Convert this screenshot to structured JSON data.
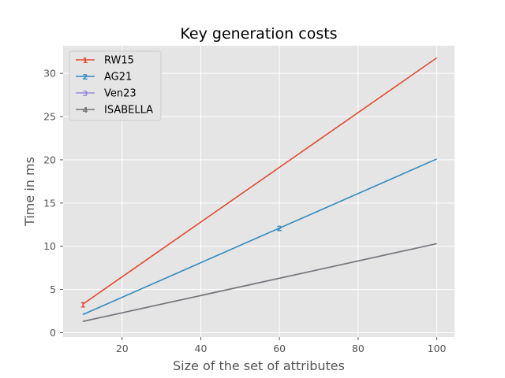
{
  "chart_data": {
    "type": "line",
    "title": "Key generation costs",
    "xlabel": "Size of the set of attributes",
    "ylabel": "Time in ms",
    "xlim": [
      5,
      104.5
    ],
    "ylim": [
      -0.5,
      33.2
    ],
    "xticks": [
      20,
      40,
      60,
      80,
      100
    ],
    "yticks": [
      0,
      5,
      10,
      15,
      20,
      25,
      30
    ],
    "grid": true,
    "legend_position": "upper-left",
    "x": [
      10,
      100
    ],
    "series": [
      {
        "name": "RW15",
        "color": "#E24A33",
        "marker_glyph": "1",
        "values": [
          3.3,
          31.8
        ],
        "markers": [
          {
            "x": 10,
            "y": 3.3
          }
        ]
      },
      {
        "name": "AG21",
        "color": "#348ABD",
        "marker_glyph": "2",
        "values": [
          2.1,
          20.1
        ],
        "markers": [
          {
            "x": 60,
            "y": 12.1
          }
        ]
      },
      {
        "name": "Ven23",
        "color": "#988ED5",
        "marker_glyph": "3",
        "values": [
          1.3,
          10.3
        ],
        "markers": []
      },
      {
        "name": "ISABELLA",
        "color": "#777777",
        "marker_glyph": "4",
        "values": [
          1.3,
          10.3
        ],
        "markers": []
      }
    ]
  }
}
